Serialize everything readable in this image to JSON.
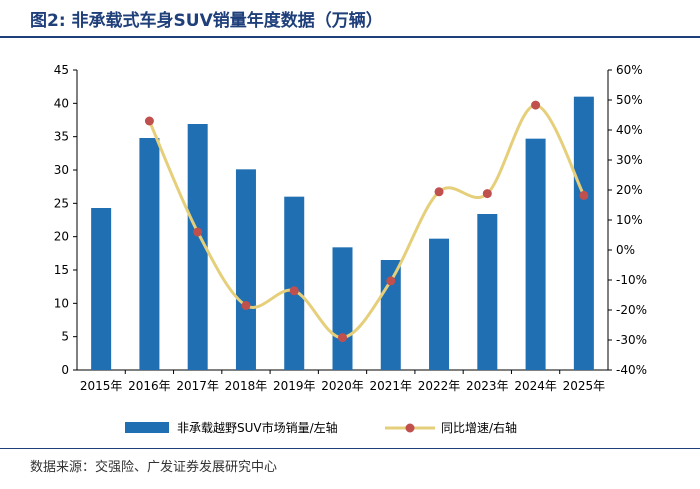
{
  "title": "图2:  非承载式车身SUV销量年度数据（万辆）",
  "source": "数据来源：交强险、广发证券发展研究中心",
  "chart_data": {
    "type": "bar",
    "categories": [
      "2015年",
      "2016年",
      "2017年",
      "2018年",
      "2019年",
      "2020年",
      "2021年",
      "2022年",
      "2023年",
      "2024年",
      "2025年"
    ],
    "series": [
      {
        "name": "非承载越野SUV市场销量/左轴",
        "type": "bar",
        "axis": "left",
        "color": "#1f6fb2",
        "values": [
          24.3,
          34.8,
          36.9,
          30.1,
          26.0,
          18.4,
          16.5,
          19.7,
          23.4,
          34.7,
          41.0
        ]
      },
      {
        "name": "同比增速/右轴",
        "type": "line",
        "axis": "right",
        "color": "#e6cf7a",
        "marker_color": "#c0504d",
        "values": [
          null,
          43,
          6,
          -18.5,
          -13.6,
          -29.2,
          -10.3,
          19.4,
          18.8,
          48.3,
          18.2
        ]
      }
    ],
    "y_left": {
      "min": 0,
      "max": 45,
      "step": 5,
      "ticks": [
        "0",
        "5",
        "10",
        "15",
        "20",
        "25",
        "30",
        "35",
        "40",
        "45"
      ]
    },
    "y_right": {
      "min": -40,
      "max": 60,
      "step": 10,
      "ticks": [
        "-40%",
        "-30%",
        "-20%",
        "-10%",
        "0%",
        "10%",
        "20%",
        "30%",
        "40%",
        "50%",
        "60%"
      ]
    },
    "grid": false,
    "legend": "bottom"
  }
}
